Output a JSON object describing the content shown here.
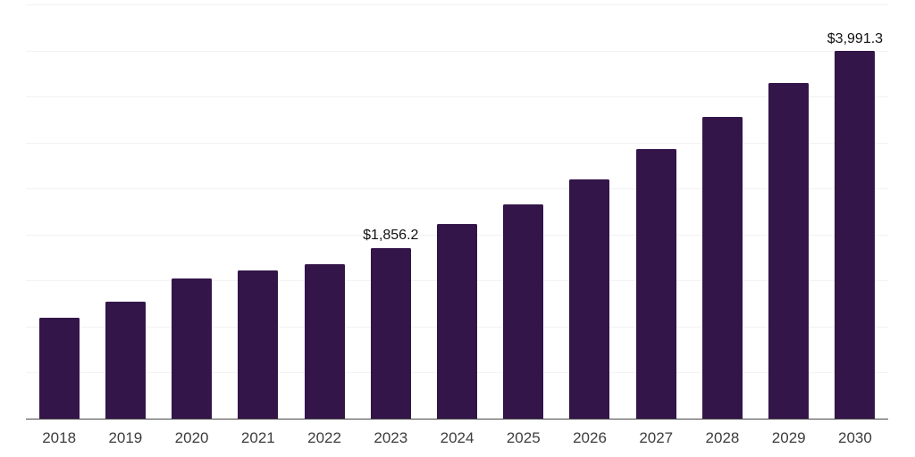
{
  "chart_data": {
    "type": "bar",
    "title": "",
    "xlabel": "",
    "ylabel": "",
    "categories": [
      "2018",
      "2019",
      "2020",
      "2021",
      "2022",
      "2023",
      "2024",
      "2025",
      "2026",
      "2027",
      "2028",
      "2029",
      "2030"
    ],
    "values": [
      1096,
      1266,
      1523,
      1610,
      1678,
      1856.2,
      2115,
      2328,
      2600,
      2925,
      3274,
      3642,
      3991.3
    ],
    "data_labels": [
      {
        "category": "2023",
        "text": "$1,856.2"
      },
      {
        "category": "2030",
        "text": "$3,991.3"
      }
    ],
    "ylim": [
      0,
      4500
    ],
    "gridline_step": 500,
    "grid": true,
    "legend": "none",
    "y_axis_labels_visible": false,
    "colors": {
      "bar": "#331549",
      "gridline": "#f2f2f2",
      "axis_line": "#454545",
      "data_label_text": "#111111",
      "tick_label_text": "#3d3d3d"
    }
  }
}
